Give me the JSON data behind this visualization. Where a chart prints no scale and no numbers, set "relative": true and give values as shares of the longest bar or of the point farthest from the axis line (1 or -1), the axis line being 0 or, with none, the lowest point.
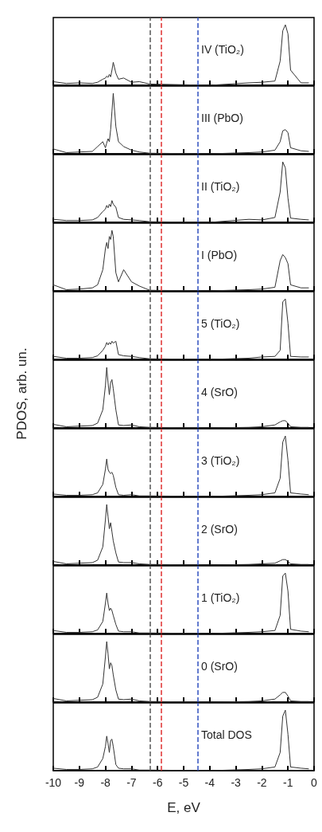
{
  "chart_data": [
    {
      "type": "line",
      "relative": true,
      "xlim": [
        -10,
        0
      ],
      "xticks": [
        -10,
        -9,
        -8,
        -7,
        -6,
        -5,
        -4,
        -3,
        -2,
        -1,
        0
      ],
      "tick_labels": false,
      "annotations": [
        "IV (TiO₂)"
      ],
      "ref_lines": [
        {
          "axis": "x",
          "value": -6.3,
          "color": "#555555",
          "line_style": "dashed"
        },
        {
          "axis": "x",
          "value": -5.85,
          "color": "#e03030",
          "line_style": "dashed"
        },
        {
          "axis": "x",
          "value": -4.45,
          "color": "#3050c0",
          "line_style": "dashed"
        }
      ],
      "x": [
        -10,
        -9.5,
        -9,
        -8.5,
        -8.3,
        -8.1,
        -8.0,
        -7.95,
        -7.9,
        -7.85,
        -7.8,
        -7.75,
        -7.7,
        -7.6,
        -7.5,
        -7.3,
        -7.0,
        -6.7,
        -6.3,
        -4,
        -2.5,
        -2,
        -1.5,
        -1.3,
        -1.2,
        -1.1,
        -1.0,
        -0.9,
        -0.5,
        -0.2
      ],
      "series": [
        {
          "color": "#333333",
          "values": [
            0.06,
            0.03,
            0.04,
            0.03,
            0.05,
            0.1,
            0.12,
            0.15,
            0.13,
            0.18,
            0.14,
            0.25,
            0.38,
            0.2,
            0.1,
            0.12,
            0.05,
            0.06,
            0.02,
            0,
            0.04,
            0.05,
            0.07,
            0.4,
            0.9,
            1,
            0.85,
            0.25,
            0.04,
            0.04
          ]
        }
      ]
    },
    {
      "type": "line",
      "relative": true,
      "xlim": [
        -10,
        0
      ],
      "xticks": [
        -10,
        -9,
        -8,
        -7,
        -6,
        -5,
        -4,
        -3,
        -2,
        -1,
        0
      ],
      "tick_labels": false,
      "annotations": [
        "III (PbO)"
      ],
      "ref_lines": [
        {
          "axis": "x",
          "value": -6.3,
          "color": "#555555",
          "line_style": "dashed"
        },
        {
          "axis": "x",
          "value": -5.85,
          "color": "#e03030",
          "line_style": "dashed"
        },
        {
          "axis": "x",
          "value": -4.45,
          "color": "#3050c0",
          "line_style": "dashed"
        }
      ],
      "x": [
        -10,
        -9.5,
        -9,
        -8.5,
        -8.3,
        -8.1,
        -8.0,
        -7.95,
        -7.9,
        -7.85,
        -7.8,
        -7.75,
        -7.7,
        -7.6,
        -7.5,
        -7.3,
        -7.0,
        -6.7,
        -6.3,
        -4,
        -2.5,
        -2,
        -1.5,
        -1.3,
        -1.2,
        -1.1,
        -1.0,
        -0.9,
        -0.5,
        -0.2
      ],
      "series": [
        {
          "color": "#333333",
          "values": [
            0.08,
            0.02,
            0.03,
            0.04,
            0.12,
            0.2,
            0.1,
            0.18,
            0.25,
            0.2,
            0.4,
            0.7,
            1,
            0.45,
            0.2,
            0.12,
            0.06,
            0.03,
            0.01,
            0,
            0.02,
            0.03,
            0.06,
            0.2,
            0.38,
            0.4,
            0.35,
            0.1,
            0.05,
            0.04
          ]
        }
      ]
    },
    {
      "type": "line",
      "relative": true,
      "xlim": [
        -10,
        0
      ],
      "xticks": [
        -10,
        -9,
        -8,
        -7,
        -6,
        -5,
        -4,
        -3,
        -2,
        -1,
        0
      ],
      "tick_labels": false,
      "annotations": [
        "II (TiO₂)"
      ],
      "ref_lines": [
        {
          "axis": "x",
          "value": -6.3,
          "color": "#555555",
          "line_style": "dashed"
        },
        {
          "axis": "x",
          "value": -5.85,
          "color": "#e03030",
          "line_style": "dashed"
        },
        {
          "axis": "x",
          "value": -4.45,
          "color": "#3050c0",
          "line_style": "dashed"
        }
      ],
      "x": [
        -10,
        -9.5,
        -9,
        -8.5,
        -8.3,
        -8.1,
        -8.0,
        -7.95,
        -7.9,
        -7.85,
        -7.8,
        -7.75,
        -7.7,
        -7.6,
        -7.5,
        -7.3,
        -7.0,
        -6.7,
        -6.3,
        -4,
        -2.5,
        -2,
        -1.5,
        -1.3,
        -1.2,
        -1.1,
        -1.0,
        -0.9,
        -0.5,
        -0.2
      ],
      "series": [
        {
          "color": "#333333",
          "values": [
            0.05,
            0.03,
            0.03,
            0.04,
            0.08,
            0.18,
            0.22,
            0.28,
            0.24,
            0.3,
            0.26,
            0.36,
            0.3,
            0.25,
            0.08,
            0.05,
            0.04,
            0.03,
            0.01,
            0,
            0.05,
            0.04,
            0.08,
            0.5,
            1,
            0.9,
            0.4,
            0.07,
            0.05,
            0.04
          ]
        }
      ]
    },
    {
      "type": "line",
      "relative": true,
      "xlim": [
        -10,
        0
      ],
      "xticks": [
        -10,
        -9,
        -8,
        -7,
        -6,
        -5,
        -4,
        -3,
        -2,
        -1,
        0
      ],
      "tick_labels": false,
      "annotations": [
        "I (PbO)"
      ],
      "ref_lines": [
        {
          "axis": "x",
          "value": -6.3,
          "color": "#555555",
          "line_style": "dashed"
        },
        {
          "axis": "x",
          "value": -5.85,
          "color": "#e03030",
          "line_style": "dashed"
        },
        {
          "axis": "x",
          "value": -4.45,
          "color": "#3050c0",
          "line_style": "dashed"
        }
      ],
      "x": [
        -10,
        -9.5,
        -9,
        -8.5,
        -8.3,
        -8.1,
        -8.0,
        -7.95,
        -7.9,
        -7.85,
        -7.8,
        -7.75,
        -7.7,
        -7.6,
        -7.5,
        -7.3,
        -7.0,
        -6.7,
        -6.3,
        -4,
        -2.5,
        -2,
        -1.5,
        -1.3,
        -1.2,
        -1.1,
        -1.0,
        -0.9,
        -0.5,
        -0.2
      ],
      "series": [
        {
          "color": "#333333",
          "values": [
            0.1,
            0.02,
            0.03,
            0.05,
            0.1,
            0.35,
            0.7,
            0.8,
            0.7,
            0.9,
            0.85,
            1,
            0.9,
            0.3,
            0.15,
            0.35,
            0.15,
            0.08,
            0.01,
            0,
            0.02,
            0.03,
            0.06,
            0.5,
            0.6,
            0.55,
            0.45,
            0.1,
            0.05,
            0.05
          ]
        }
      ]
    },
    {
      "type": "line",
      "relative": true,
      "xlim": [
        -10,
        0
      ],
      "xticks": [
        -10,
        -9,
        -8,
        -7,
        -6,
        -5,
        -4,
        -3,
        -2,
        -1,
        0
      ],
      "tick_labels": false,
      "annotations": [
        "5 (TiO₂)"
      ],
      "ref_lines": [
        {
          "axis": "x",
          "value": -6.3,
          "color": "#555555",
          "line_style": "dashed"
        },
        {
          "axis": "x",
          "value": -5.85,
          "color": "#e03030",
          "line_style": "dashed"
        },
        {
          "axis": "x",
          "value": -4.45,
          "color": "#3050c0",
          "line_style": "dashed"
        }
      ],
      "x": [
        -10,
        -9.5,
        -9,
        -8.5,
        -8.3,
        -8.1,
        -8.0,
        -7.95,
        -7.9,
        -7.85,
        -7.8,
        -7.75,
        -7.7,
        -7.6,
        -7.5,
        -7.3,
        -7.0,
        -6.7,
        -6.3,
        -4,
        -2.5,
        -2,
        -1.5,
        -1.3,
        -1.2,
        -1.1,
        -1.0,
        -0.9,
        -0.5,
        -0.2
      ],
      "series": [
        {
          "color": "#333333",
          "values": [
            0.05,
            0.02,
            0.02,
            0.03,
            0.06,
            0.15,
            0.22,
            0.28,
            0.24,
            0.28,
            0.25,
            0.3,
            0.27,
            0.3,
            0.08,
            0.06,
            0.05,
            0.03,
            0.01,
            0,
            0.02,
            0.04,
            0.05,
            0.15,
            0.95,
            1,
            0.6,
            0.05,
            0.04,
            0.04
          ]
        }
      ]
    },
    {
      "type": "line",
      "relative": true,
      "xlim": [
        -10,
        0
      ],
      "xticks": [
        -10,
        -9,
        -8,
        -7,
        -6,
        -5,
        -4,
        -3,
        -2,
        -1,
        0
      ],
      "tick_labels": false,
      "ylabel": "PDOS, arb. un.",
      "annotations": [
        "4 (SrO)"
      ],
      "ref_lines": [
        {
          "axis": "x",
          "value": -6.3,
          "color": "#555555",
          "line_style": "dashed"
        },
        {
          "axis": "x",
          "value": -5.85,
          "color": "#e03030",
          "line_style": "dashed"
        },
        {
          "axis": "x",
          "value": -4.45,
          "color": "#3050c0",
          "line_style": "dashed"
        }
      ],
      "x": [
        -10,
        -9.5,
        -9,
        -8.5,
        -8.3,
        -8.1,
        -8.0,
        -7.95,
        -7.9,
        -7.85,
        -7.8,
        -7.75,
        -7.7,
        -7.6,
        -7.5,
        -7.3,
        -7.0,
        -6.7,
        -6.3,
        -4,
        -2.5,
        -2,
        -1.5,
        -1.3,
        -1.2,
        -1.1,
        -1.0,
        -0.9,
        -0.5,
        -0.2
      ],
      "series": [
        {
          "color": "#333333",
          "values": [
            0.06,
            0.02,
            0.03,
            0.04,
            0.08,
            0.3,
            0.7,
            1,
            0.75,
            0.55,
            0.75,
            0.8,
            0.65,
            0.3,
            0.05,
            0.04,
            0.05,
            0.02,
            0.01,
            0,
            0.01,
            0.02,
            0.05,
            0.1,
            0.12,
            0.12,
            0.08,
            0.02,
            0.01,
            0.01
          ]
        }
      ]
    },
    {
      "type": "line",
      "relative": true,
      "xlim": [
        -10,
        0
      ],
      "xticks": [
        -10,
        -9,
        -8,
        -7,
        -6,
        -5,
        -4,
        -3,
        -2,
        -1,
        0
      ],
      "tick_labels": false,
      "annotations": [
        "3 (TiO₂)"
      ],
      "ref_lines": [
        {
          "axis": "x",
          "value": -6.3,
          "color": "#555555",
          "line_style": "dashed"
        },
        {
          "axis": "x",
          "value": -5.85,
          "color": "#e03030",
          "line_style": "dashed"
        },
        {
          "axis": "x",
          "value": -4.45,
          "color": "#3050c0",
          "line_style": "dashed"
        }
      ],
      "x": [
        -10,
        -9.5,
        -9,
        -8.5,
        -8.3,
        -8.1,
        -8.0,
        -7.95,
        -7.9,
        -7.85,
        -7.8,
        -7.75,
        -7.7,
        -7.6,
        -7.5,
        -7.3,
        -7.0,
        -6.7,
        -6.3,
        -4,
        -2.5,
        -2,
        -1.5,
        -1.3,
        -1.2,
        -1.1,
        -1.0,
        -0.9,
        -0.5,
        -0.2
      ],
      "series": [
        {
          "color": "#333333",
          "values": [
            0.04,
            0.02,
            0.02,
            0.03,
            0.06,
            0.2,
            0.45,
            0.62,
            0.45,
            0.4,
            0.38,
            0.4,
            0.35,
            0.15,
            0.03,
            0.02,
            0.03,
            0.01,
            0.01,
            0,
            0.02,
            0.03,
            0.06,
            0.3,
            0.9,
            1,
            0.6,
            0.06,
            0.04,
            0.03
          ]
        }
      ]
    },
    {
      "type": "line",
      "relative": true,
      "xlim": [
        -10,
        0
      ],
      "xticks": [
        -10,
        -9,
        -8,
        -7,
        -6,
        -5,
        -4,
        -3,
        -2,
        -1,
        0
      ],
      "tick_labels": false,
      "annotations": [
        "2 (SrO)"
      ],
      "ref_lines": [
        {
          "axis": "x",
          "value": -6.3,
          "color": "#555555",
          "line_style": "dashed"
        },
        {
          "axis": "x",
          "value": -5.85,
          "color": "#e03030",
          "line_style": "dashed"
        },
        {
          "axis": "x",
          "value": -4.45,
          "color": "#3050c0",
          "line_style": "dashed"
        }
      ],
      "x": [
        -10,
        -9.5,
        -9,
        -8.5,
        -8.3,
        -8.1,
        -8.0,
        -7.95,
        -7.9,
        -7.85,
        -7.8,
        -7.75,
        -7.7,
        -7.6,
        -7.5,
        -7.3,
        -7.0,
        -6.7,
        -6.3,
        -4,
        -2.5,
        -2,
        -1.5,
        -1.3,
        -1.2,
        -1.1,
        -1.0,
        -0.9,
        -0.5,
        -0.2
      ],
      "series": [
        {
          "color": "#333333",
          "values": [
            0.06,
            0.02,
            0.03,
            0.04,
            0.08,
            0.3,
            0.75,
            1,
            0.8,
            0.6,
            0.7,
            0.55,
            0.4,
            0.2,
            0.05,
            0.04,
            0.04,
            0.02,
            0.01,
            0,
            0.01,
            0.02,
            0.03,
            0.07,
            0.09,
            0.09,
            0.06,
            0.02,
            0.01,
            0.01
          ]
        }
      ]
    },
    {
      "type": "line",
      "relative": true,
      "xlim": [
        -10,
        0
      ],
      "xticks": [
        -10,
        -9,
        -8,
        -7,
        -6,
        -5,
        -4,
        -3,
        -2,
        -1,
        0
      ],
      "tick_labels": false,
      "annotations": [
        "1 (TiO₂)"
      ],
      "ref_lines": [
        {
          "axis": "x",
          "value": -6.3,
          "color": "#555555",
          "line_style": "dashed"
        },
        {
          "axis": "x",
          "value": -5.85,
          "color": "#e03030",
          "line_style": "dashed"
        },
        {
          "axis": "x",
          "value": -4.45,
          "color": "#3050c0",
          "line_style": "dashed"
        }
      ],
      "x": [
        -10,
        -9.5,
        -9,
        -8.5,
        -8.3,
        -8.1,
        -8.0,
        -7.95,
        -7.9,
        -7.85,
        -7.8,
        -7.75,
        -7.7,
        -7.6,
        -7.5,
        -7.3,
        -7.0,
        -6.7,
        -6.3,
        -4,
        -2.5,
        -2,
        -1.5,
        -1.3,
        -1.2,
        -1.1,
        -1.0,
        -0.9,
        -0.5,
        -0.2
      ],
      "series": [
        {
          "color": "#333333",
          "values": [
            0.05,
            0.02,
            0.02,
            0.03,
            0.06,
            0.2,
            0.5,
            0.67,
            0.5,
            0.38,
            0.42,
            0.38,
            0.3,
            0.15,
            0.04,
            0.03,
            0.03,
            0.01,
            0.01,
            0,
            0.02,
            0.03,
            0.05,
            0.3,
            0.95,
            1,
            0.7,
            0.07,
            0.04,
            0.03
          ]
        }
      ]
    },
    {
      "type": "line",
      "relative": true,
      "xlim": [
        -10,
        0
      ],
      "xticks": [
        -10,
        -9,
        -8,
        -7,
        -6,
        -5,
        -4,
        -3,
        -2,
        -1,
        0
      ],
      "tick_labels": false,
      "annotations": [
        "0 (SrO)"
      ],
      "ref_lines": [
        {
          "axis": "x",
          "value": -6.3,
          "color": "#555555",
          "line_style": "dashed"
        },
        {
          "axis": "x",
          "value": -5.85,
          "color": "#e03030",
          "line_style": "dashed"
        },
        {
          "axis": "x",
          "value": -4.45,
          "color": "#3050c0",
          "line_style": "dashed"
        }
      ],
      "x": [
        -10,
        -9.5,
        -9,
        -8.5,
        -8.3,
        -8.1,
        -8.0,
        -7.95,
        -7.9,
        -7.85,
        -7.8,
        -7.75,
        -7.7,
        -7.6,
        -7.5,
        -7.3,
        -7.0,
        -6.7,
        -6.3,
        -4,
        -2.5,
        -2,
        -1.5,
        -1.3,
        -1.2,
        -1.1,
        -1.0,
        -0.9,
        -0.5,
        -0.2
      ],
      "series": [
        {
          "color": "#333333",
          "values": [
            0.06,
            0.02,
            0.03,
            0.04,
            0.08,
            0.3,
            0.75,
            1,
            0.8,
            0.55,
            0.65,
            0.6,
            0.45,
            0.2,
            0.05,
            0.04,
            0.05,
            0.02,
            0.01,
            0,
            0.01,
            0.02,
            0.05,
            0.12,
            0.16,
            0.16,
            0.1,
            0.02,
            0.01,
            0.01
          ]
        }
      ]
    },
    {
      "type": "line",
      "relative": true,
      "xlim": [
        -10,
        0
      ],
      "xticks": [
        -10,
        -9,
        -8,
        -7,
        -6,
        -5,
        -4,
        -3,
        -2,
        -1,
        0
      ],
      "tick_labels": "x",
      "xlabel": "E, eV",
      "annotations": [
        "Total DOS"
      ],
      "ref_lines": [
        {
          "axis": "x",
          "value": -6.3,
          "color": "#555555",
          "line_style": "dashed"
        },
        {
          "axis": "x",
          "value": -5.85,
          "color": "#e03030",
          "line_style": "dashed"
        },
        {
          "axis": "x",
          "value": -4.45,
          "color": "#3050c0",
          "line_style": "dashed"
        }
      ],
      "x": [
        -10,
        -9.5,
        -9,
        -8.5,
        -8.3,
        -8.1,
        -8.0,
        -7.95,
        -7.9,
        -7.85,
        -7.8,
        -7.75,
        -7.7,
        -7.6,
        -7.5,
        -7.3,
        -7.0,
        -6.7,
        -6.3,
        -4,
        -2.5,
        -2,
        -1.5,
        -1.3,
        -1.2,
        -1.1,
        -1.0,
        -0.9,
        -0.5,
        -0.2
      ],
      "series": [
        {
          "color": "#333333",
          "values": [
            0.04,
            0.02,
            0.02,
            0.03,
            0.06,
            0.2,
            0.4,
            0.57,
            0.45,
            0.3,
            0.5,
            0.52,
            0.4,
            0.1,
            0.04,
            0.03,
            0.03,
            0.01,
            0.01,
            0,
            0.02,
            0.03,
            0.06,
            0.3,
            0.9,
            1,
            0.6,
            0.06,
            0.04,
            0.03
          ]
        }
      ]
    }
  ]
}
